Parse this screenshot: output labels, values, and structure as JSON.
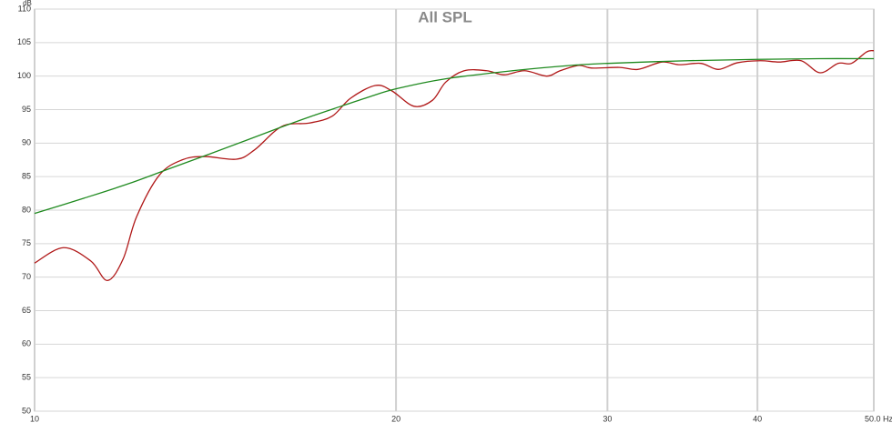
{
  "chart_data": {
    "type": "line",
    "title": "All SPL",
    "y_label": "dB",
    "xscale": "log",
    "grid": true,
    "xlim": [
      10,
      50
    ],
    "xticks": [
      10,
      20,
      30,
      40,
      {
        "value": 50,
        "label": "50.0 Hz"
      }
    ],
    "ylim": [
      50,
      110
    ],
    "yticks": [
      50,
      55,
      60,
      65,
      70,
      75,
      80,
      85,
      90,
      95,
      100,
      105,
      110
    ],
    "series": [
      {
        "color": "#b01818",
        "x": [
          10,
          10.57,
          11.14,
          11.5,
          11.85,
          12.16,
          12.7,
          13.27,
          13.86,
          14.73,
          15.25,
          16.07,
          16.94,
          17.69,
          18.33,
          19.22,
          19.84,
          20.7,
          21.45,
          22.0,
          22.8,
          23.8,
          24.6,
          25.6,
          26.7,
          27.4,
          28.4,
          29.1,
          30.7,
          31.8,
          33.3,
          34.4,
          35.9,
          37.1,
          38.5,
          40.2,
          41.7,
          43.5,
          45.1,
          46.7,
          47.9,
          49.3,
          50
        ],
        "values": [
          72.1,
          74.4,
          72.4,
          69.5,
          72.7,
          79.0,
          85.2,
          87.5,
          88.0,
          87.6,
          89.0,
          92.5,
          93.0,
          94.0,
          96.7,
          98.6,
          97.8,
          95.5,
          96.4,
          99.1,
          100.8,
          100.8,
          100.2,
          100.8,
          100.0,
          100.8,
          101.6,
          101.2,
          101.3,
          101.0,
          102.1,
          101.7,
          101.9,
          101.0,
          102.0,
          102.3,
          102.1,
          102.3,
          100.5,
          101.9,
          101.9,
          103.6,
          103.8
        ]
      },
      {
        "color": "#1f8a1f",
        "x": [
          10,
          11,
          12,
          13,
          14,
          15,
          16,
          17,
          18,
          19,
          20,
          22,
          25,
          28,
          30,
          35,
          40,
          45,
          50
        ],
        "values": [
          79.5,
          81.8,
          84.0,
          86.3,
          88.4,
          90.4,
          92.3,
          94.0,
          95.5,
          96.9,
          98.1,
          99.6,
          100.8,
          101.6,
          101.9,
          102.3,
          102.5,
          102.6,
          102.6
        ]
      }
    ]
  }
}
